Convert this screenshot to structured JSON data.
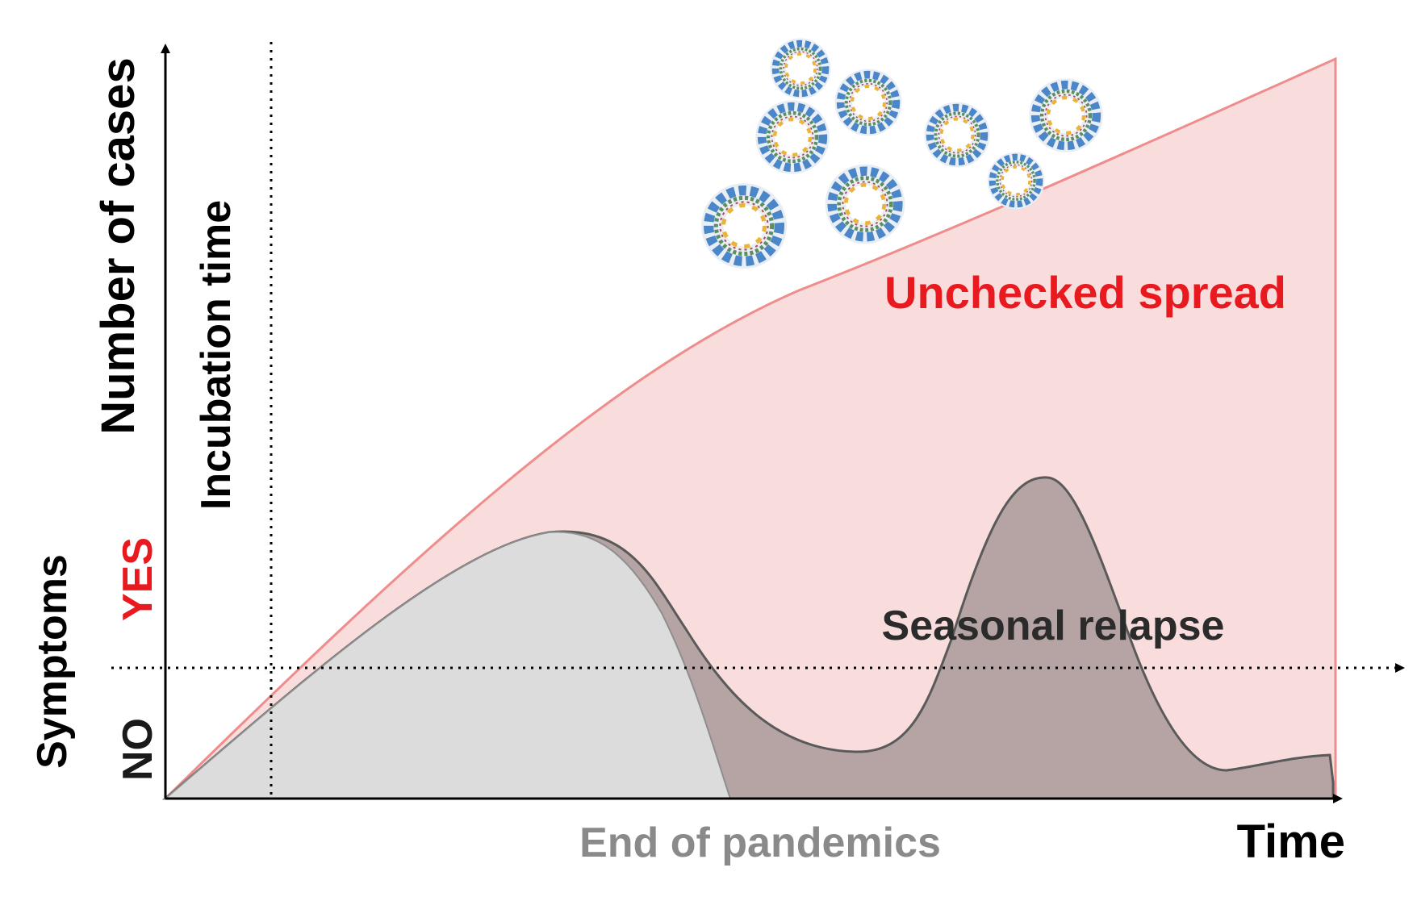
{
  "labels": {
    "y_axis": "Number of cases",
    "x_axis": "Time",
    "incubation": "Incubation time",
    "symptoms": "Symptoms",
    "symptoms_yes": "YES",
    "symptoms_no": "NO",
    "unchecked": "Unchecked spread",
    "seasonal": "Seasonal relapse",
    "end": "End of pandemics"
  },
  "colors": {
    "unchecked_text": "#e8191f",
    "unchecked_fill": "#f9dcdc",
    "unchecked_stroke": "#ef8c8c",
    "seasonal_fill": "#b6a4a4",
    "seasonal_stroke": "#5a5a5a",
    "end_fill": "#dcdcdc",
    "end_text": "#8a8a8a",
    "yes_text": "#e8191f",
    "axis": "#000000",
    "virus_spike": "#4a86c8",
    "virus_inner": "#e8b53a"
  },
  "icons": {
    "virus": "coronavirus-particle-icon"
  }
}
